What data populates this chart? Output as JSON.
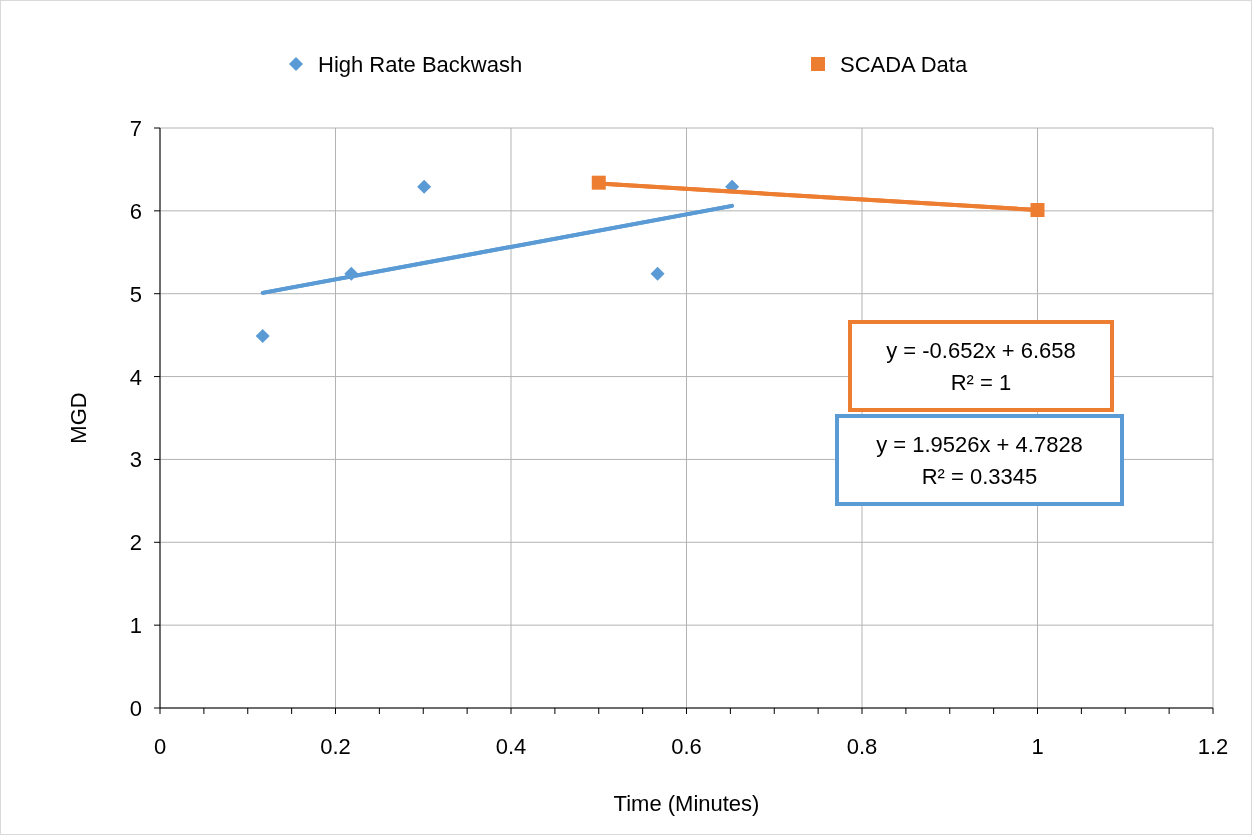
{
  "chart_data": {
    "type": "scatter",
    "xlabel": "Time (Minutes)",
    "ylabel": "MGD",
    "xlim": [
      0,
      1.2
    ],
    "ylim": [
      0,
      7
    ],
    "xticks": [
      0,
      {
        "value": 0.05,
        "label": null
      },
      {
        "value": 0.1,
        "label": null
      },
      {
        "value": 0.15,
        "label": null
      },
      0.2,
      {
        "value": 0.25,
        "label": null
      },
      {
        "value": 0.3,
        "label": null
      },
      {
        "value": 0.35,
        "label": null
      },
      0.4,
      {
        "value": 0.45,
        "label": null
      },
      {
        "value": 0.5,
        "label": null
      },
      {
        "value": 0.55,
        "label": null
      },
      0.6,
      {
        "value": 0.65,
        "label": null
      },
      {
        "value": 0.7,
        "label": null
      },
      {
        "value": 0.75,
        "label": null
      },
      0.8,
      {
        "value": 0.85,
        "label": null
      },
      {
        "value": 0.9,
        "label": null
      },
      {
        "value": 0.95,
        "label": null
      },
      1,
      {
        "value": 1.05,
        "label": null
      },
      {
        "value": 1.1,
        "label": null
      },
      {
        "value": 1.15,
        "label": null
      },
      1.2
    ],
    "yticks": [
      0,
      1,
      2,
      3,
      4,
      5,
      6,
      7
    ],
    "grid": true,
    "legend": "top",
    "series": [
      {
        "name": "High Rate Backwash",
        "type": "scatter",
        "marker": "diamond",
        "color": "#5b9bd5",
        "x": [
          0.117,
          0.218,
          0.301,
          0.567,
          0.652
        ],
        "values": [
          4.49,
          5.24,
          6.29,
          5.24,
          6.29
        ]
      },
      {
        "name": "SCADA Data",
        "type": "line",
        "marker": "square",
        "color": "#ed7d31",
        "x": [
          0.5,
          1
        ],
        "values": [
          6.34,
          6.01
        ]
      },
      {
        "type": "line",
        "marker": "none",
        "color": "#5b9bd5",
        "x": [
          0.117,
          0.652
        ],
        "values": [
          5.01,
          6.06
        ]
      },
      {
        "type": "line",
        "marker": "none",
        "color": "#ed7d31",
        "x": [
          0.5,
          1
        ],
        "values": [
          6.33,
          6.01
        ]
      }
    ],
    "annotations": [
      "y = -0.652x + 6.658",
      "R² = 1",
      "y = 1.9526x + 4.7828",
      "R² = 0.3345"
    ]
  }
}
